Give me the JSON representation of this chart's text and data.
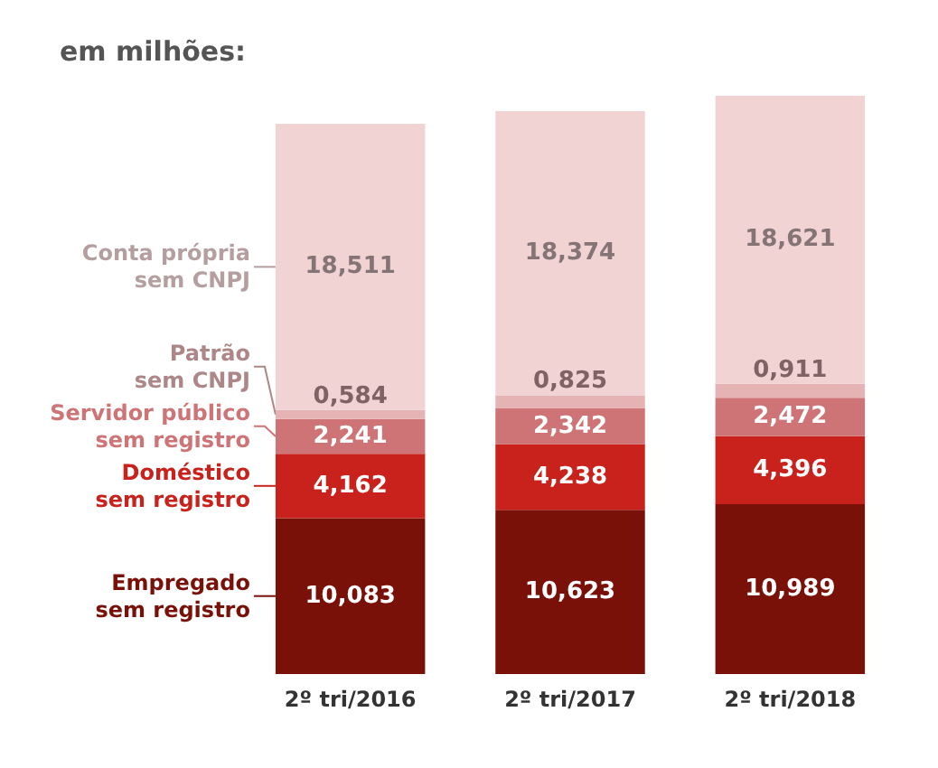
{
  "chart_data": {
    "type": "bar",
    "title": "em milhões:",
    "stacked": true,
    "legend": "left",
    "categories": [
      "2º tri/2016",
      "2º tri/2017",
      "2º tri/2018"
    ],
    "series": [
      {
        "name": "Empregado\nsem registro",
        "color": "#7a1109",
        "values": [
          10.083,
          10.623,
          10.989
        ],
        "value_labels": [
          "10,083",
          "10,623",
          "10,989"
        ]
      },
      {
        "name": "Doméstico\nsem registro",
        "color": "#c9211b",
        "values": [
          4.162,
          4.238,
          4.396
        ],
        "value_labels": [
          "4,162",
          "4,238",
          "4,396"
        ]
      },
      {
        "name": "Servidor público\nsem registro",
        "color": "#cf7476",
        "values": [
          2.241,
          2.342,
          2.472
        ],
        "value_labels": [
          "2,241",
          "2,342",
          "2,472"
        ]
      },
      {
        "name": "Patrão\nsem CNPJ",
        "color": "#e6b3b5",
        "values": [
          0.584,
          0.825,
          0.911
        ],
        "value_labels": [
          "0,584",
          "0,825",
          "0,911"
        ]
      },
      {
        "name": "Conta própria\nsem CNPJ",
        "color": "#f1d3d4",
        "values": [
          18.511,
          18.374,
          18.621
        ],
        "value_labels": [
          "18,511",
          "18,374",
          "18,621"
        ]
      }
    ]
  }
}
